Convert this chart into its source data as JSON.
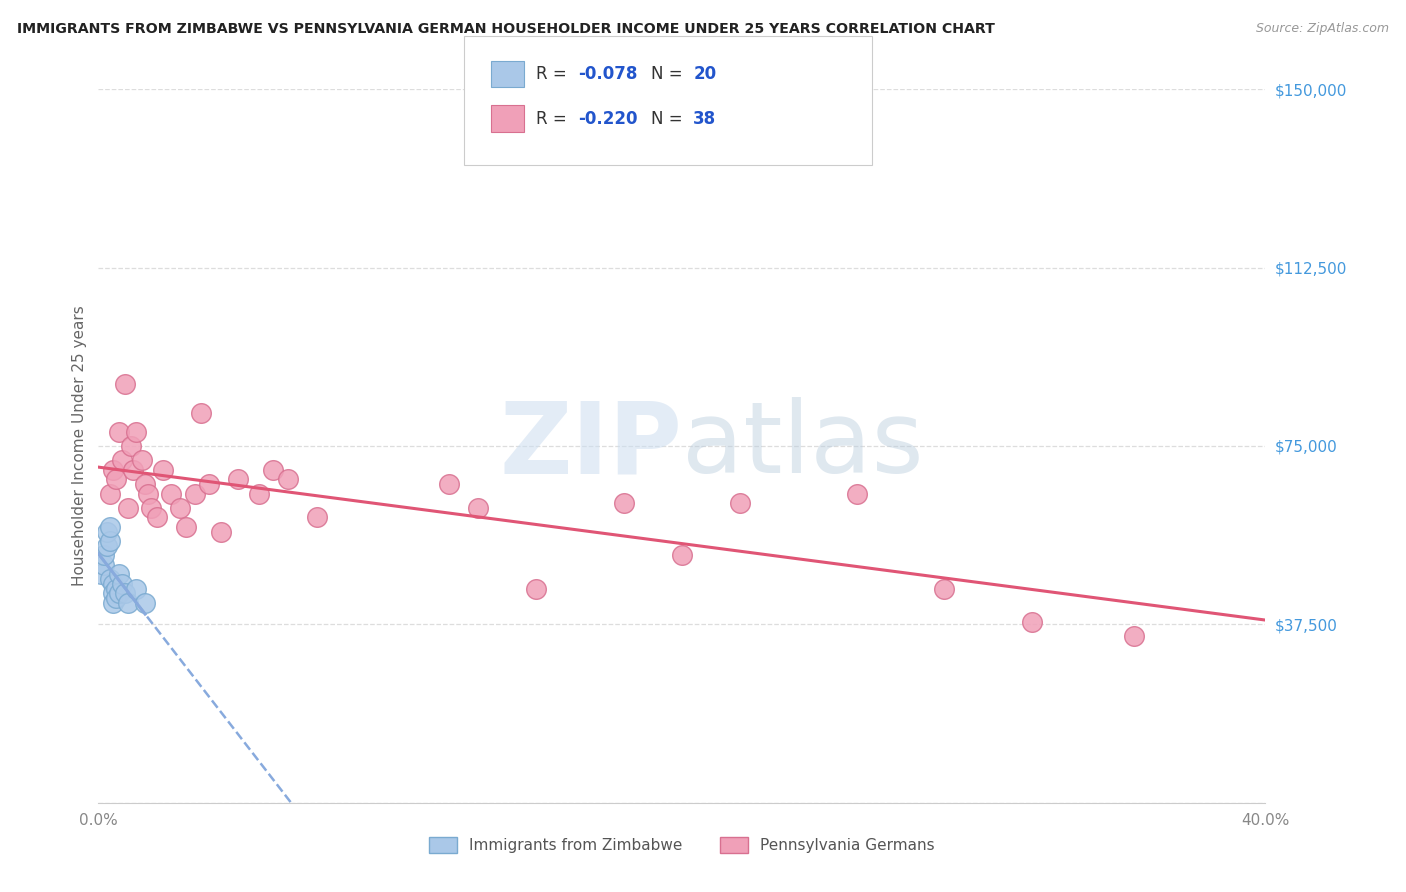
{
  "title": "IMMIGRANTS FROM ZIMBABWE VS PENNSYLVANIA GERMAN HOUSEHOLDER INCOME UNDER 25 YEARS CORRELATION CHART",
  "source": "Source: ZipAtlas.com",
  "ylabel": "Householder Income Under 25 years",
  "xlim": [
    0,
    0.4
  ],
  "ylim": [
    0,
    150000
  ],
  "yticks": [
    0,
    37500,
    75000,
    112500,
    150000
  ],
  "ytick_labels": [
    "",
    "$37,500",
    "$75,000",
    "$112,500",
    "$150,000"
  ],
  "legend_r1": "-0.078",
  "legend_n1": "20",
  "legend_r2": "-0.220",
  "legend_n2": "38",
  "legend_label1": "Immigrants from Zimbabwe",
  "legend_label2": "Pennsylvania Germans",
  "blue_color": "#aac8e8",
  "blue_edge": "#7aaad0",
  "pink_color": "#f0a0b8",
  "pink_edge": "#d87090",
  "blue_line_color": "#88aadd",
  "pink_line_color": "#e05575",
  "grid_color": "#dddddd",
  "right_tick_color": "#4499dd",
  "watermark_color": "#d8eaf8",
  "zimbabwe_x": [
    0.001,
    0.002,
    0.002,
    0.003,
    0.003,
    0.004,
    0.004,
    0.004,
    0.005,
    0.005,
    0.005,
    0.006,
    0.006,
    0.007,
    0.007,
    0.008,
    0.009,
    0.01,
    0.013,
    0.016
  ],
  "zimbabwe_y": [
    48000,
    50000,
    52000,
    54000,
    57000,
    55000,
    58000,
    47000,
    46000,
    44000,
    42000,
    45000,
    43000,
    48000,
    44000,
    46000,
    44000,
    42000,
    45000,
    42000
  ],
  "pa_german_x": [
    0.004,
    0.005,
    0.006,
    0.007,
    0.008,
    0.009,
    0.01,
    0.011,
    0.012,
    0.013,
    0.015,
    0.016,
    0.017,
    0.018,
    0.02,
    0.022,
    0.025,
    0.028,
    0.03,
    0.033,
    0.035,
    0.038,
    0.042,
    0.048,
    0.055,
    0.06,
    0.065,
    0.075,
    0.12,
    0.13,
    0.15,
    0.18,
    0.2,
    0.22,
    0.26,
    0.29,
    0.32,
    0.355
  ],
  "pa_german_y": [
    65000,
    70000,
    68000,
    78000,
    72000,
    88000,
    62000,
    75000,
    70000,
    78000,
    72000,
    67000,
    65000,
    62000,
    60000,
    70000,
    65000,
    62000,
    58000,
    65000,
    82000,
    67000,
    57000,
    68000,
    65000,
    70000,
    68000,
    60000,
    67000,
    62000,
    45000,
    63000,
    52000,
    63000,
    65000,
    45000,
    38000,
    35000
  ]
}
